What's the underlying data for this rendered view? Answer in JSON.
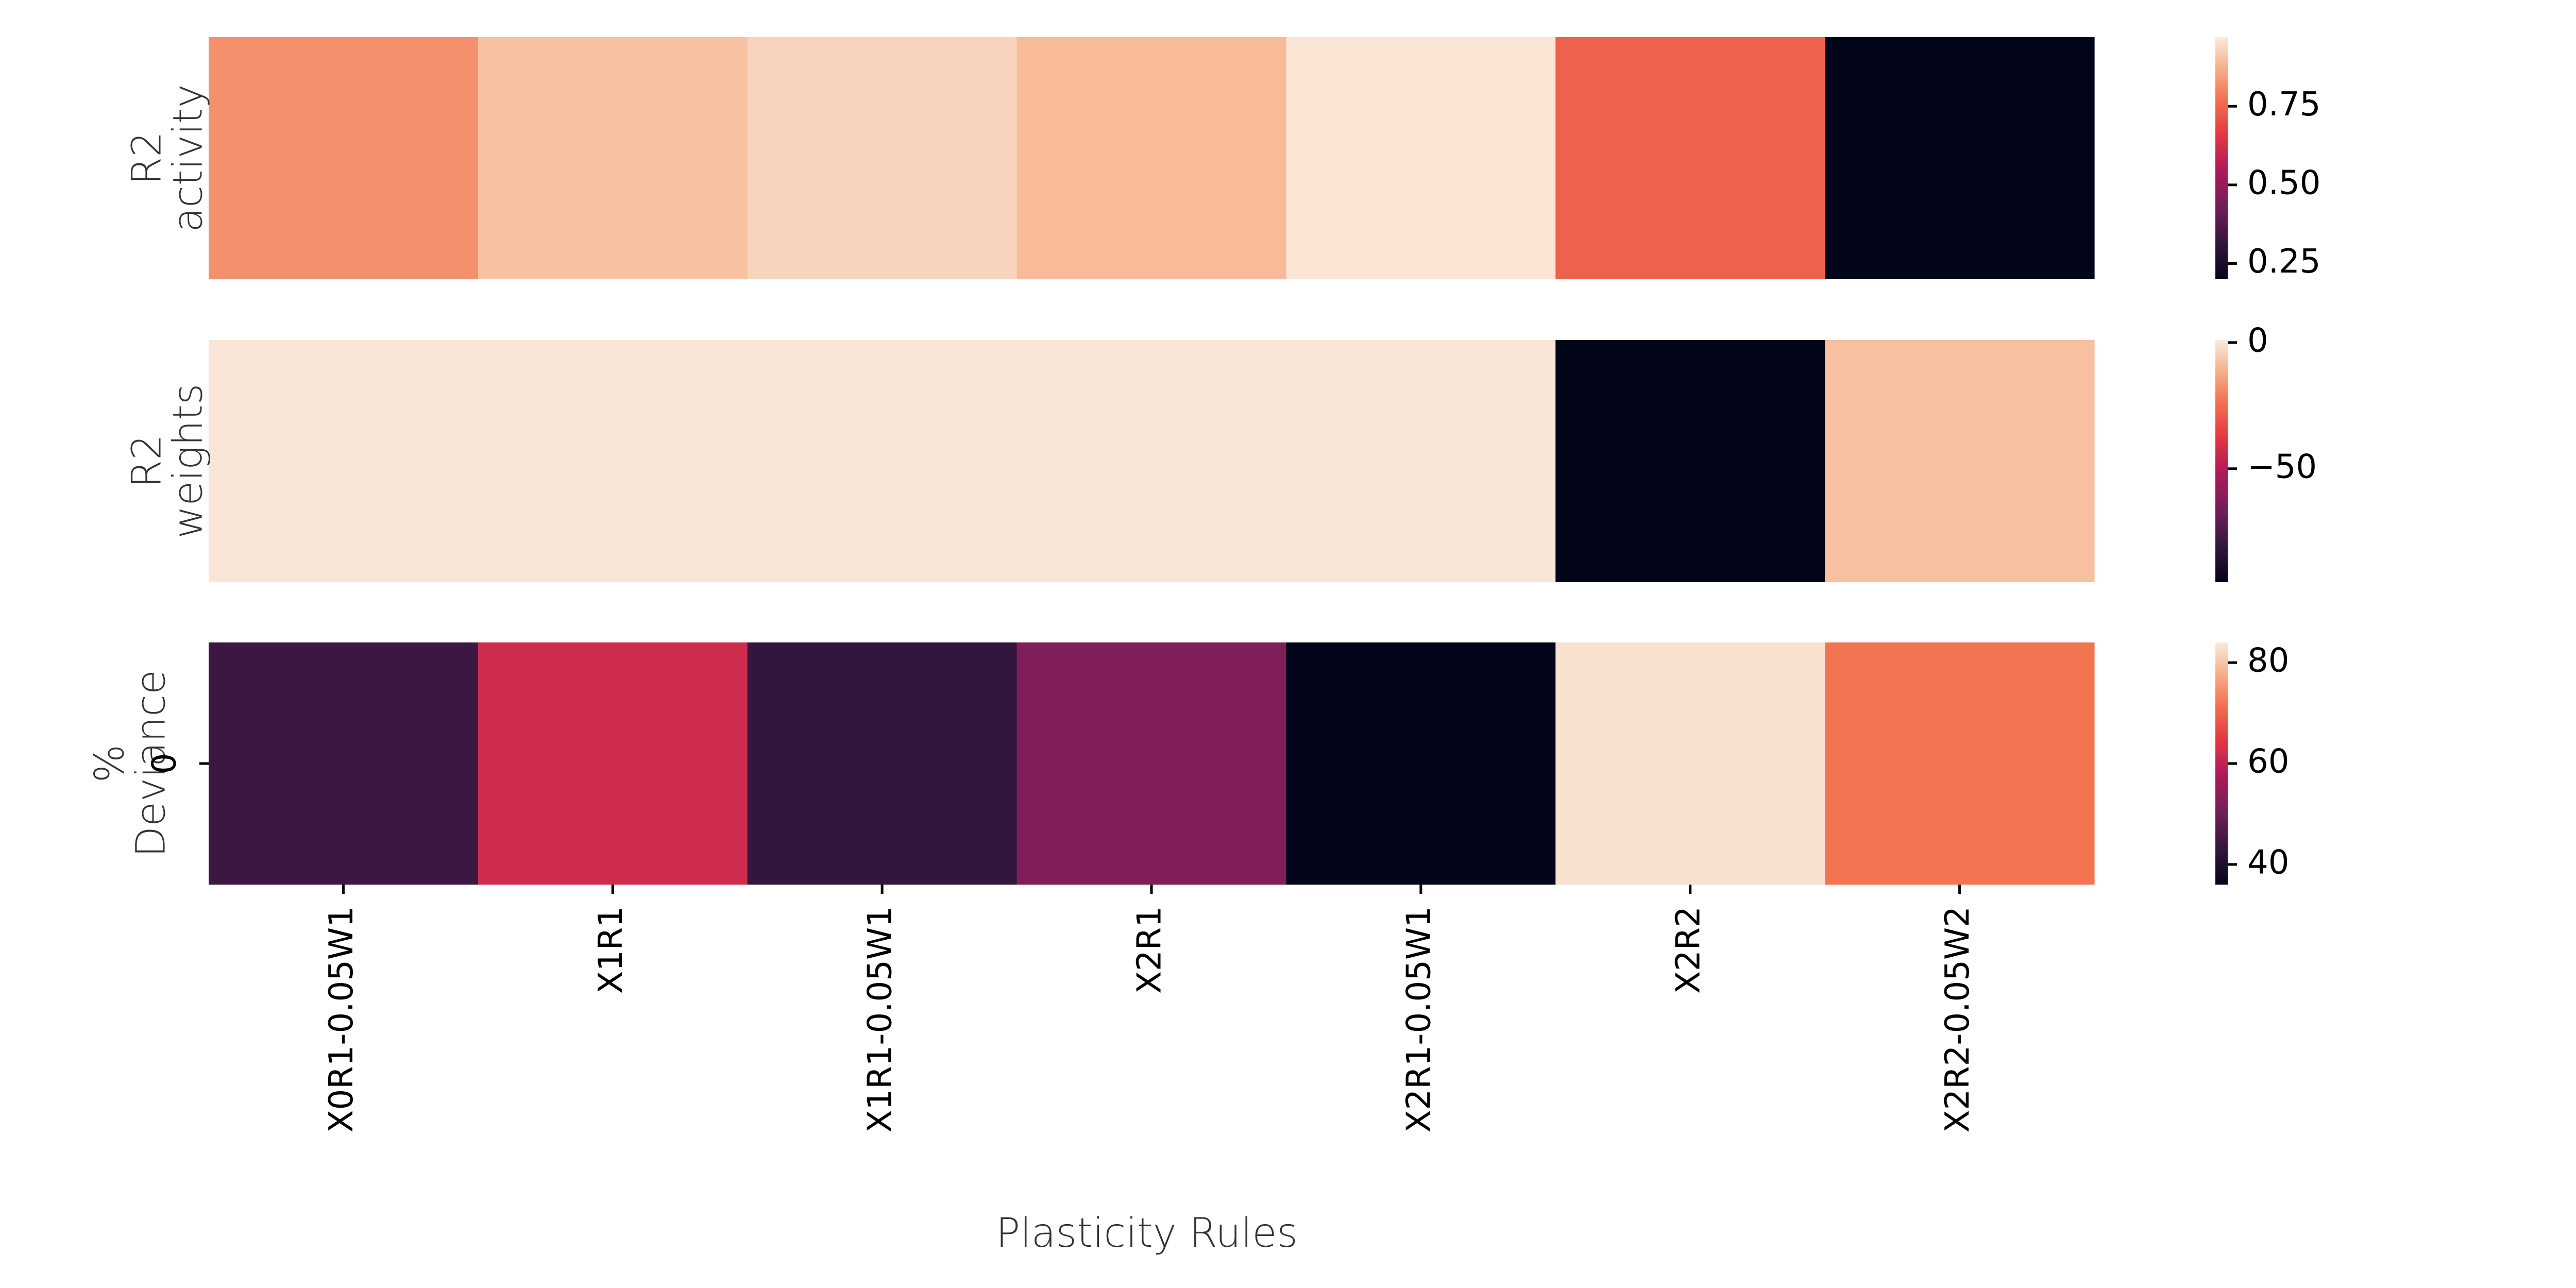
{
  "chart_data": {
    "type": "heatmap",
    "xlabel": "Plasticity Rules",
    "categories": [
      "X0R1-0.05W1",
      "X1R1",
      "X1R1-0.05W1",
      "X2R1",
      "X2R1-0.05W1",
      "X2R2",
      "X2R2-0.05W2"
    ],
    "colormap": "rocket",
    "panels": [
      {
        "id": "r2-activity",
        "ylabel": [
          "R2",
          "activity"
        ],
        "row_ticks": [],
        "values": [
          0.82,
          0.9,
          0.93,
          0.89,
          0.96,
          0.74,
          0.2
        ],
        "vmin": 0.2,
        "vmax": 0.97,
        "colorbar_ticks": [
          0.25,
          0.5,
          0.75
        ],
        "colorbar_tick_labels": [
          "0.25",
          "0.50",
          "0.75"
        ]
      },
      {
        "id": "r2-weights",
        "ylabel": [
          "R2",
          "weights"
        ],
        "row_ticks": [],
        "values": [
          0,
          0,
          0,
          0,
          0,
          -95,
          -8
        ],
        "vmin": -95,
        "vmax": 1,
        "colorbar_ticks": [
          -50,
          0
        ],
        "colorbar_tick_labels": [
          "−50",
          "0"
        ]
      },
      {
        "id": "pct-deviance",
        "ylabel": [
          "%",
          "Deviance"
        ],
        "row_ticks": [
          "0"
        ],
        "values": [
          44,
          62,
          43,
          52,
          36,
          83,
          72
        ],
        "vmin": 36,
        "vmax": 84,
        "colorbar_ticks": [
          40,
          60,
          80
        ],
        "colorbar_tick_labels": [
          "40",
          "60",
          "80"
        ]
      }
    ]
  }
}
